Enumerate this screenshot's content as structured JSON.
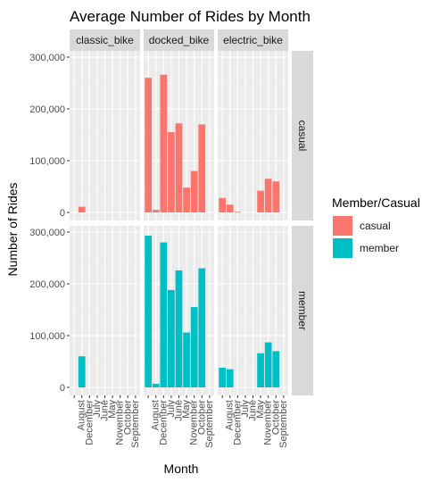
{
  "chart_data": {
    "type": "bar",
    "title": "Average Number of Rides by Month",
    "xlabel": "Month",
    "ylabel": "Number of Rides",
    "ylim": [
      0,
      300000
    ],
    "y_ticks": [
      0,
      100000,
      200000,
      300000
    ],
    "y_tick_labels": [
      "0",
      "100,000",
      "200,000",
      "300,000"
    ],
    "grid": true,
    "legend_position": "right",
    "legend_title": "Member/Casual",
    "col_facet_labels": [
      "classic_bike",
      "docked_bike",
      "electric_bike"
    ],
    "row_facet_labels": [
      "casual",
      "member"
    ],
    "categories": [
      "",
      "August",
      "December",
      "July",
      "June",
      "May",
      "November",
      "October",
      "September"
    ],
    "x_tick_labels": [
      "August",
      "December",
      "July",
      "June",
      "May",
      "November",
      "October",
      "September"
    ],
    "series": [
      {
        "name": "casual",
        "color": "#F8766D",
        "panels": {
          "classic_bike": [
            0,
            11000,
            0,
            0,
            0,
            0,
            0,
            0,
            0
          ],
          "docked_bike": [
            260000,
            5000,
            266000,
            155000,
            172000,
            48000,
            80000,
            170000,
            0
          ],
          "electric_bike": [
            28000,
            15000,
            1000,
            0,
            0,
            42000,
            65000,
            60000,
            0
          ]
        }
      },
      {
        "name": "member",
        "color": "#00BFC4",
        "panels": {
          "classic_bike": [
            0,
            60000,
            0,
            0,
            0,
            0,
            0,
            0,
            0
          ],
          "docked_bike": [
            293000,
            7000,
            280000,
            188000,
            226000,
            106000,
            155000,
            230000,
            0
          ],
          "electric_bike": [
            38000,
            35000,
            0,
            0,
            0,
            66000,
            87000,
            70000,
            0
          ]
        }
      }
    ]
  }
}
